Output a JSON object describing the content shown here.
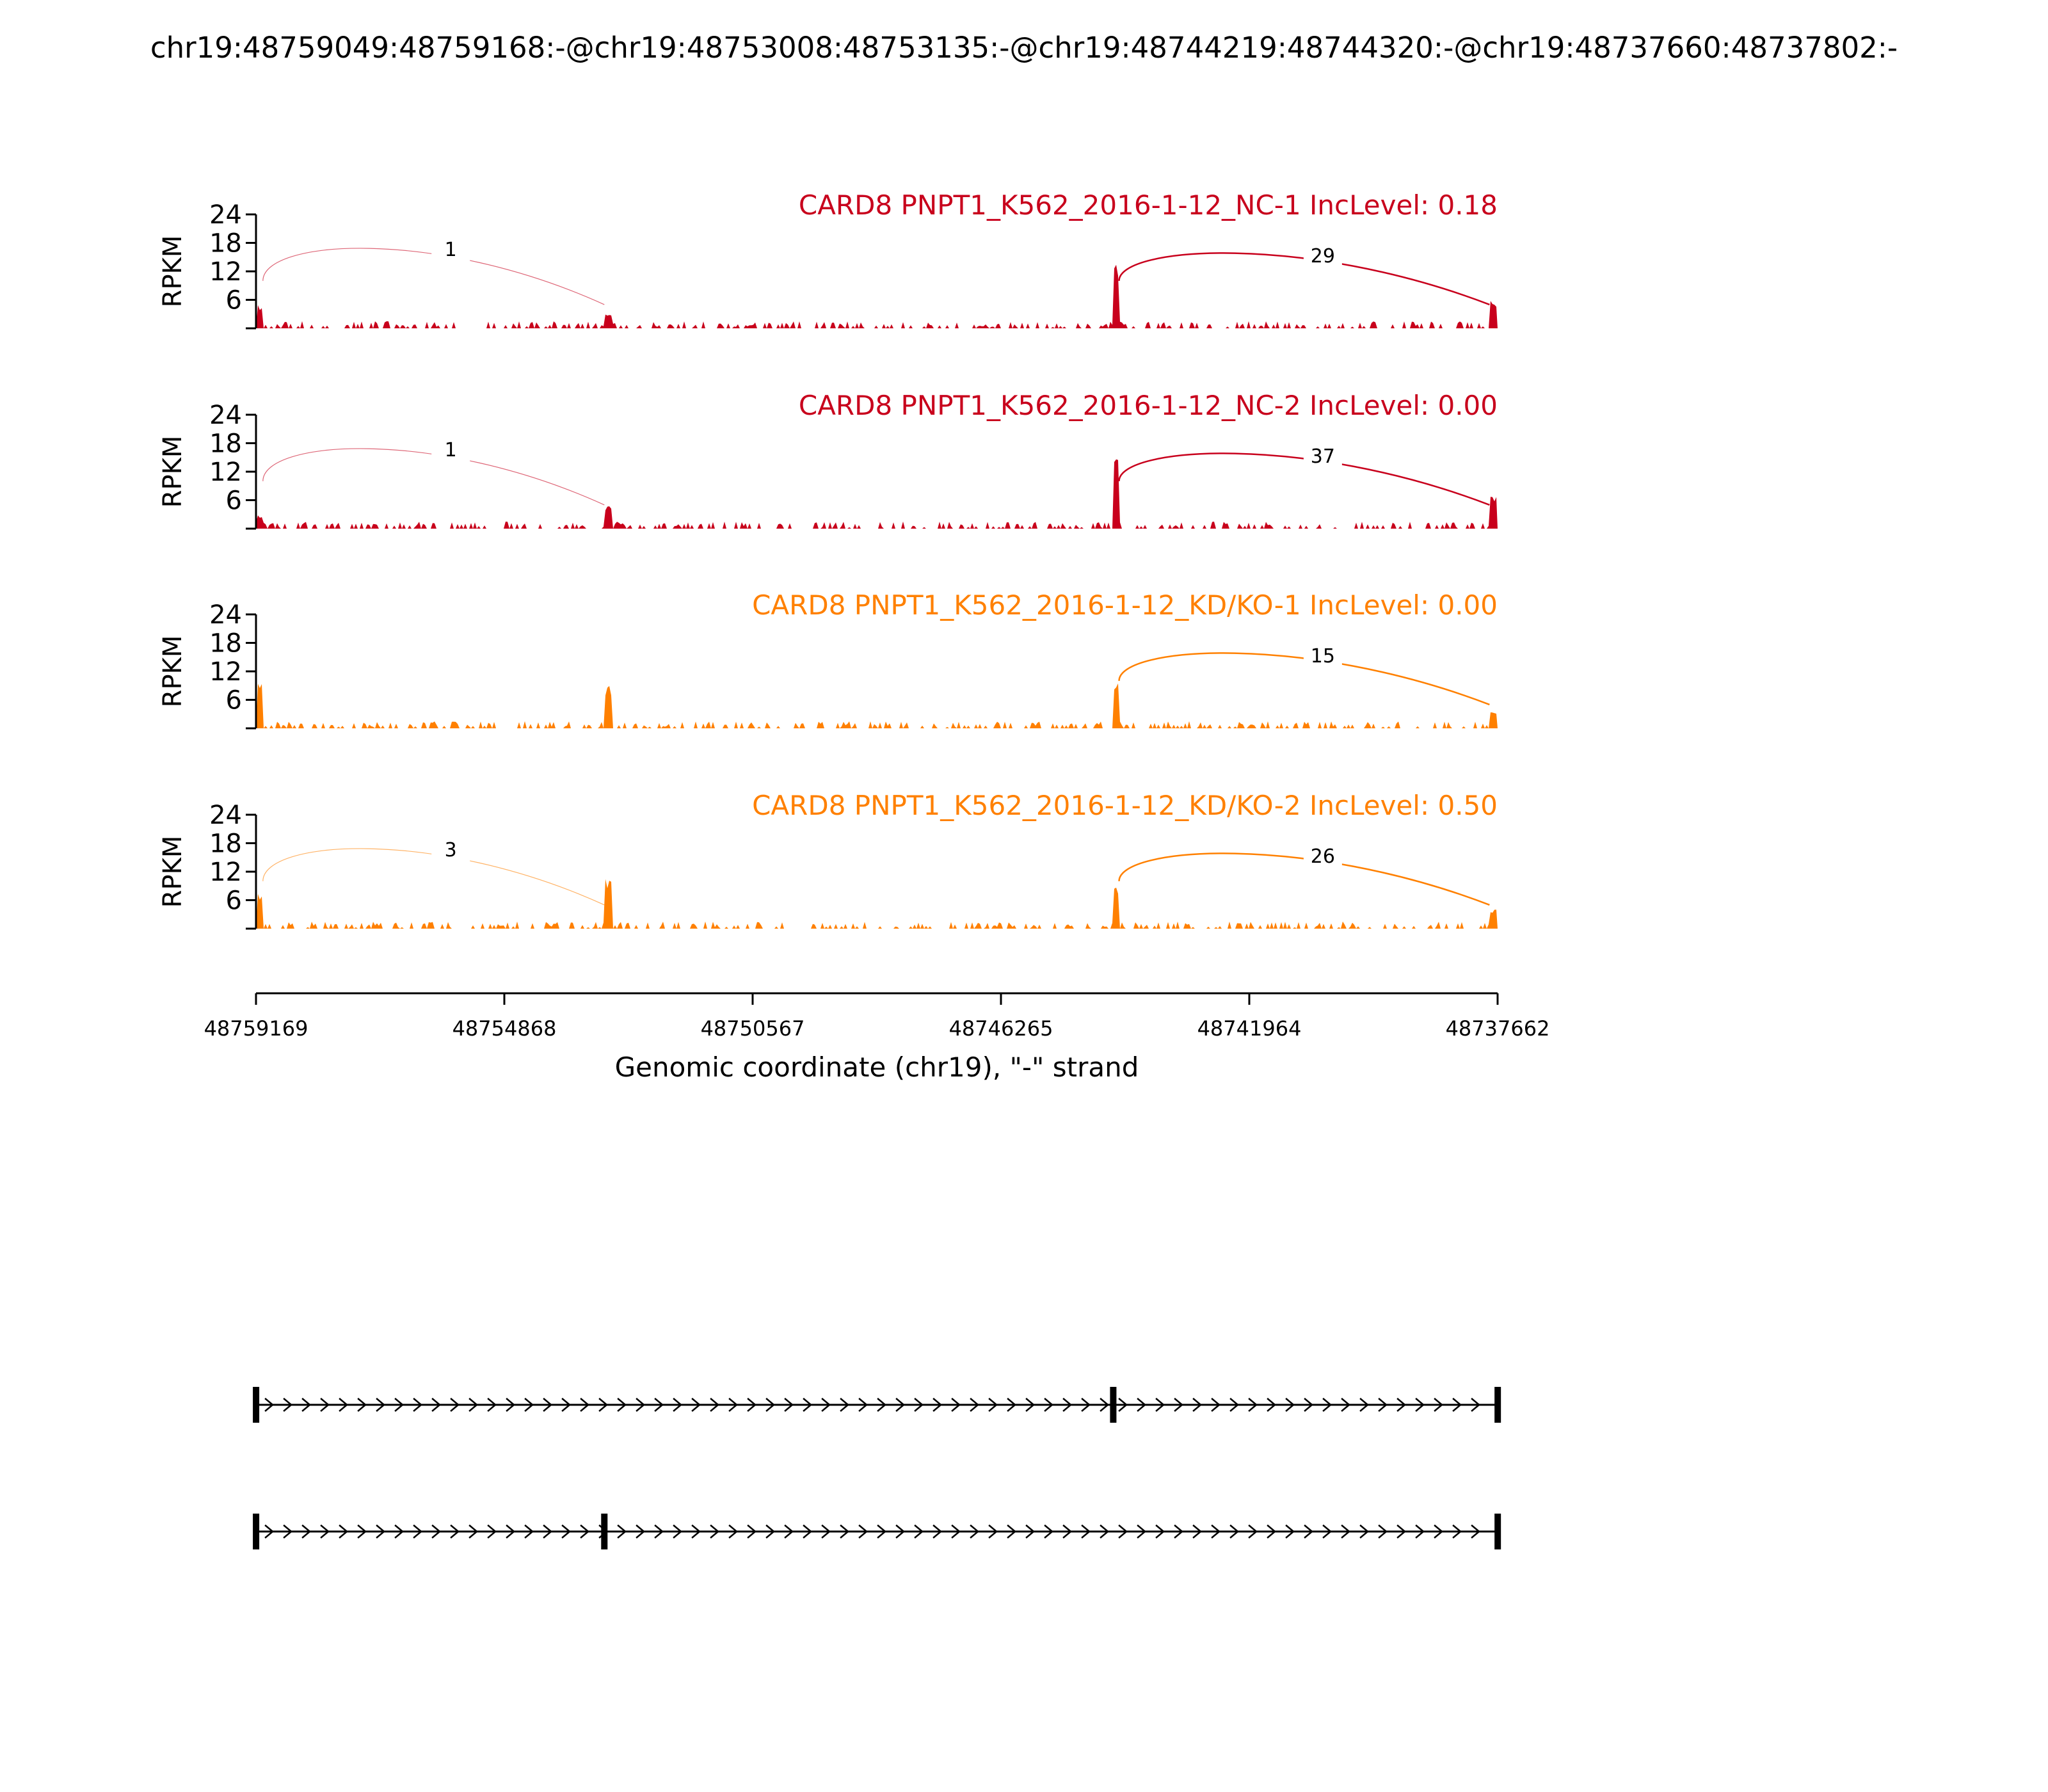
{
  "title": "chr19:48759049:48759168:-@chr19:48753008:48753135:-@chr19:48744219:48744320:-@chr19:48737660:48737802:-",
  "colors": {
    "nc": "#c8001c",
    "kd": "#ff8000",
    "axis": "#000000"
  },
  "chart_data": {
    "type": "area",
    "ylabel": "RPKM",
    "yticks": [
      6,
      12,
      18,
      24
    ],
    "ylim": [
      0,
      24
    ],
    "xlabel": "Genomic coordinate (chr19), \"-\" strand",
    "xticks": [
      "48759169",
      "48754868",
      "48750567",
      "48746265",
      "48741964",
      "48737662"
    ],
    "xrange": [
      48759169,
      48737662
    ],
    "exons": [
      {
        "start": 48759168,
        "end": 48759049
      },
      {
        "start": 48753135,
        "end": 48753008
      },
      {
        "start": 48744320,
        "end": 48744219
      },
      {
        "start": 48737802,
        "end": 48737660
      }
    ],
    "tracks": [
      {
        "label": "CARD8 PNPT1_K562_2016-1-12_NC-1 IncLevel: 0.18",
        "group": "nc",
        "junctions": [
          {
            "from": 48759049,
            "to": 48753135,
            "count": "1"
          },
          {
            "from": 48744219,
            "to": 48737802,
            "count": "29"
          }
        ]
      },
      {
        "label": "CARD8 PNPT1_K562_2016-1-12_NC-2 IncLevel: 0.00",
        "group": "nc",
        "junctions": [
          {
            "from": 48759049,
            "to": 48753135,
            "count": "1"
          },
          {
            "from": 48744219,
            "to": 48737802,
            "count": "37"
          }
        ]
      },
      {
        "label": "CARD8 PNPT1_K562_2016-1-12_KD/KO-1 IncLevel: 0.00",
        "group": "kd",
        "junctions": [
          {
            "from": 48744219,
            "to": 48737802,
            "count": "15"
          }
        ]
      },
      {
        "label": "CARD8 PNPT1_K562_2016-1-12_KD/KO-2 IncLevel: 0.50",
        "group": "kd",
        "junctions": [
          {
            "from": 48759049,
            "to": 48753135,
            "count": "3"
          },
          {
            "from": 48744219,
            "to": 48737802,
            "count": "26"
          }
        ]
      }
    ],
    "isoforms": [
      {
        "exons": [
          48759168,
          48744320,
          48737660
        ]
      },
      {
        "exons": [
          48759168,
          48753135,
          48737660
        ]
      }
    ]
  }
}
